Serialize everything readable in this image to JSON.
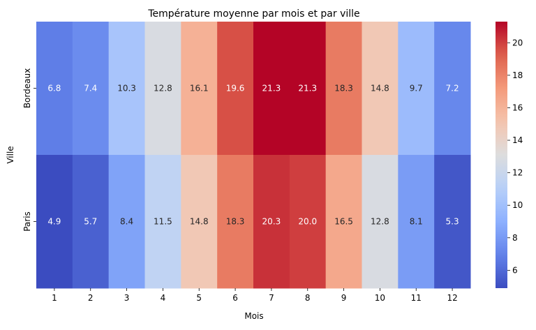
{
  "chart_data": {
    "type": "heatmap",
    "title": "Température moyenne par mois et par ville",
    "xlabel": "Mois",
    "ylabel": "Ville",
    "x_categories": [
      "1",
      "2",
      "3",
      "4",
      "5",
      "6",
      "7",
      "8",
      "9",
      "10",
      "11",
      "12"
    ],
    "y_categories": [
      "Bordeaux",
      "Paris"
    ],
    "values": [
      [
        6.8,
        7.4,
        10.3,
        12.8,
        16.1,
        19.6,
        21.3,
        21.3,
        18.3,
        14.8,
        9.7,
        7.2
      ],
      [
        4.9,
        5.7,
        8.4,
        11.5,
        14.8,
        18.3,
        20.3,
        20.0,
        16.5,
        12.8,
        8.1,
        5.3
      ]
    ],
    "colormap": "coolwarm",
    "vmin": 4.9,
    "vmax": 21.3,
    "colorbar_ticks": [
      "6",
      "8",
      "10",
      "12",
      "14",
      "16",
      "18",
      "20"
    ],
    "annotations": true,
    "value_format": "0.0"
  }
}
